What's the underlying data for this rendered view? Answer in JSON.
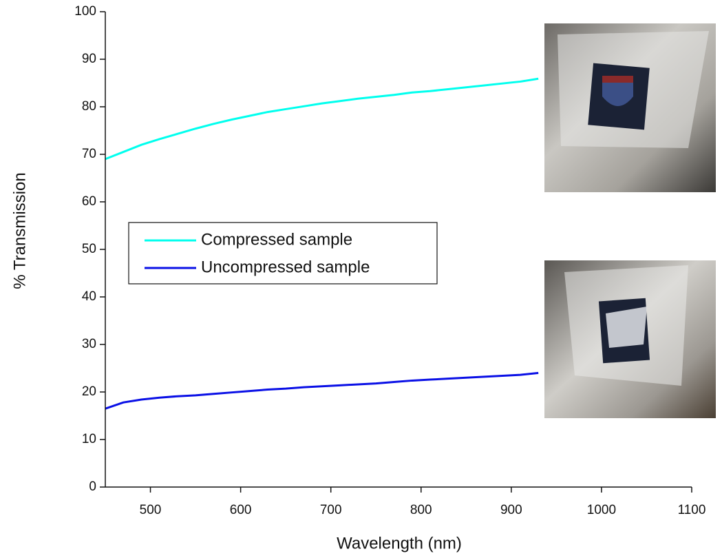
{
  "chart_data": {
    "type": "line",
    "x_label": "Wavelength (nm)",
    "y_label": "% Transmission",
    "x": [
      450,
      470,
      490,
      510,
      530,
      550,
      570,
      590,
      610,
      630,
      650,
      670,
      690,
      710,
      730,
      750,
      770,
      790,
      810,
      830,
      850,
      870,
      890,
      910,
      930
    ],
    "series": [
      {
        "name": "Compressed sample",
        "color": "#00ffee",
        "values": [
          69,
          70.5,
          72,
          73.2,
          74.3,
          75.4,
          76.4,
          77.3,
          78.1,
          78.9,
          79.5,
          80.1,
          80.7,
          81.2,
          81.7,
          82.1,
          82.5,
          83,
          83.3,
          83.7,
          84.1,
          84.5,
          84.9,
          85.3,
          85.9
        ]
      },
      {
        "name": "Uncompressed sample",
        "color": "#0a10e6",
        "values": [
          16.5,
          17.8,
          18.4,
          18.8,
          19.1,
          19.3,
          19.6,
          19.9,
          20.2,
          20.5,
          20.7,
          21,
          21.2,
          21.4,
          21.6,
          21.8,
          22.1,
          22.4,
          22.6,
          22.8,
          23,
          23.2,
          23.4,
          23.6,
          24
        ]
      }
    ],
    "xlim": [
      450,
      1100
    ],
    "xticks": [
      500,
      600,
      700,
      800,
      900,
      1000,
      1100
    ],
    "ylim": [
      0,
      100
    ],
    "yticks": [
      0,
      10,
      20,
      30,
      40,
      50,
      60,
      70,
      80,
      90,
      100
    ],
    "grid": false
  }
}
